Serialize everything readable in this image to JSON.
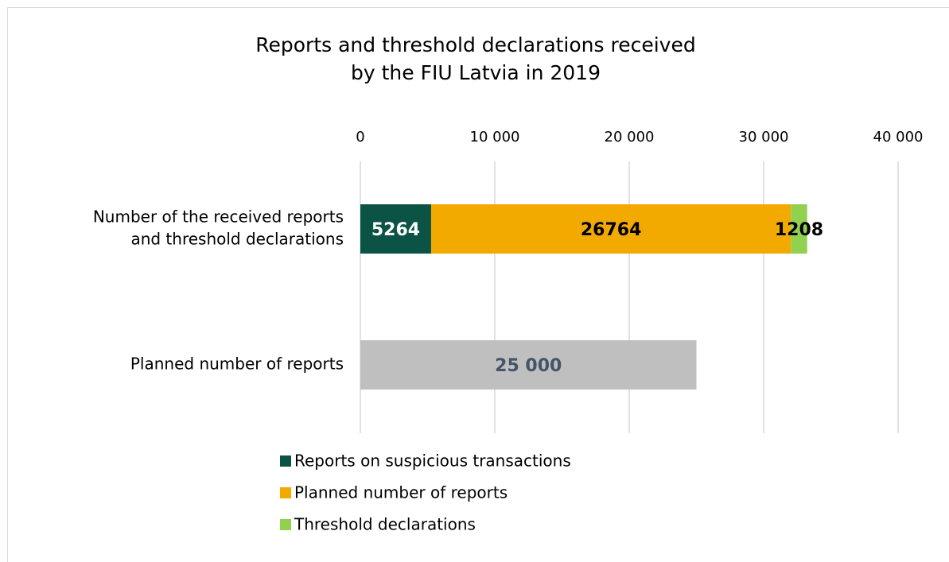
{
  "chart_data": {
    "type": "stacked_barh",
    "title": [
      "Reports and threshold declarations received",
      "by the FIU Latvia in 2019"
    ],
    "categories": [
      [
        "Number of the received reports",
        "and threshold declarations"
      ],
      "Planned number of reports"
    ],
    "series": [
      {
        "name": "Reports on suspicious transactions",
        "color": "#0b5345",
        "values": [
          5264,
          null
        ],
        "value_labels": [
          "5264",
          null
        ]
      },
      {
        "name": "Planned number of reports",
        "color": "#f2a900",
        "colors": [
          "#f2a900",
          "#bfbfbf"
        ],
        "values": [
          26764,
          25000
        ],
        "value_labels": [
          "26764",
          "25 000"
        ]
      },
      {
        "name": "Threshold declarations",
        "color": "#92d050",
        "values": [
          1208,
          null
        ],
        "value_labels": [
          "1208",
          null
        ]
      }
    ],
    "xlim": [
      0,
      40000
    ],
    "xticks": [
      0,
      {
        "value": 10000,
        "label": "10 000"
      },
      {
        "value": 20000,
        "label": "20 000"
      },
      {
        "value": 30000,
        "label": "30 000"
      },
      {
        "value": 40000,
        "label": "40 000"
      }
    ],
    "grid": true,
    "legend": "bottom"
  }
}
